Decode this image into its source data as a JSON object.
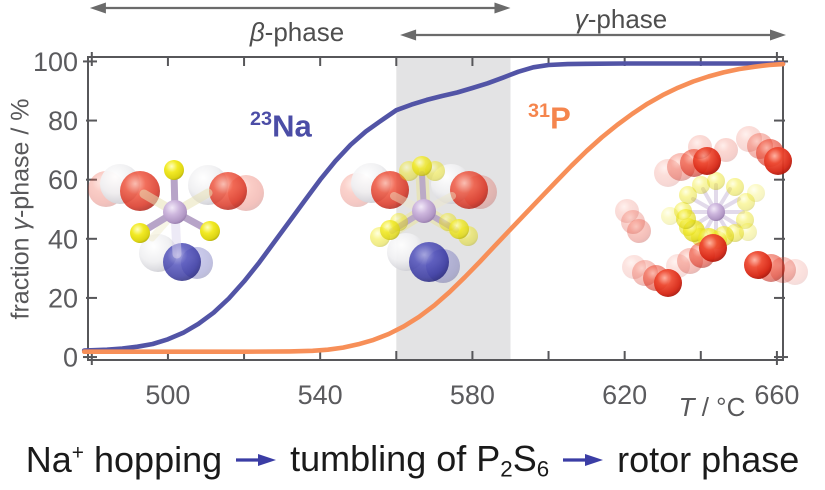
{
  "header": {
    "beta_symbol": "β",
    "beta_suffix": "-phase",
    "gamma_symbol": "γ",
    "gamma_suffix": "-phase"
  },
  "axes": {
    "y_pre": "fraction ",
    "y_symbol": "γ",
    "y_post": "-phase / %",
    "x_symbol": "T",
    "x_unit": " / °C"
  },
  "curve_labels": {
    "na": {
      "mass": "23",
      "element": "Na"
    },
    "p": {
      "mass": "31",
      "element": "P"
    }
  },
  "caption": {
    "na": "Na",
    "na_sup": "+",
    "hopping": " hopping",
    "tumbling": "tumbling of P",
    "p_sub": "2",
    "s": "S",
    "s_sub": "6",
    "rotor": "rotor phase"
  },
  "colors": {
    "curve_na": "#5254a6",
    "curve_p": "#f78f58",
    "axis": "#57575a",
    "tick_text": "#5b5b5e",
    "band": "#e3e3e4",
    "phase_arrow": "#6b6b6b",
    "caption_arrow": "#3b3da5",
    "label_na": "#4b4da6",
    "label_p": "#f5854d"
  },
  "chart_data": {
    "type": "line",
    "title": "",
    "xlabel": "T / °C",
    "ylabel": "fraction γ-phase / %",
    "xlim": [
      479,
      661.6
    ],
    "ylim": [
      -1,
      101.5
    ],
    "x_ticks_major": [
      500,
      540,
      580,
      620,
      660
    ],
    "x_ticks_minor": [
      480,
      520,
      560,
      600,
      640
    ],
    "y_ticks": [
      0,
      20,
      40,
      60,
      80,
      100
    ],
    "grid": false,
    "legend_position": "none",
    "shaded_region": {
      "x_start": 560,
      "x_end": 590
    },
    "annotations": {
      "beta_arrow_T": [
        479.5,
        590
      ],
      "gamma_arrow_T": [
        561,
        663
      ]
    },
    "series": [
      {
        "name": "23Na",
        "points": [
          [
            478,
            2.2
          ],
          [
            484,
            2.5
          ],
          [
            488,
            2.9
          ],
          [
            492,
            3.5
          ],
          [
            496,
            4.4
          ],
          [
            500,
            6
          ],
          [
            504,
            8.2
          ],
          [
            508,
            11.2
          ],
          [
            512,
            15
          ],
          [
            516,
            19.8
          ],
          [
            520,
            25.6
          ],
          [
            524,
            32
          ],
          [
            528,
            39
          ],
          [
            532,
            46
          ],
          [
            536,
            53
          ],
          [
            540,
            60
          ],
          [
            544,
            66.3
          ],
          [
            548,
            71.8
          ],
          [
            552,
            76.3
          ],
          [
            556,
            80
          ],
          [
            560,
            83.5
          ],
          [
            564,
            85.4
          ],
          [
            568,
            87
          ],
          [
            572,
            88.3
          ],
          [
            576,
            89.5
          ],
          [
            580,
            91
          ],
          [
            584,
            92.6
          ],
          [
            588,
            94.5
          ],
          [
            592,
            96.5
          ],
          [
            596,
            98
          ],
          [
            600,
            98.8
          ],
          [
            605,
            99.1
          ],
          [
            610,
            99.2
          ],
          [
            620,
            99.3
          ],
          [
            635,
            99.3
          ],
          [
            650,
            99.3
          ],
          [
            661.6,
            99.3
          ]
        ]
      },
      {
        "name": "31P",
        "points": [
          [
            478,
            1.8
          ],
          [
            500,
            1.8
          ],
          [
            520,
            1.8
          ],
          [
            532,
            1.9
          ],
          [
            538,
            2.1
          ],
          [
            542,
            2.5
          ],
          [
            546,
            3.2
          ],
          [
            550,
            4.3
          ],
          [
            554,
            5.8
          ],
          [
            558,
            7.8
          ],
          [
            562,
            10.4
          ],
          [
            566,
            13.6
          ],
          [
            570,
            17.5
          ],
          [
            574,
            22
          ],
          [
            578,
            27
          ],
          [
            582,
            32.3
          ],
          [
            586,
            37.8
          ],
          [
            590,
            43.2
          ],
          [
            594,
            48.6
          ],
          [
            598,
            54
          ],
          [
            602,
            59.4
          ],
          [
            606,
            64.7
          ],
          [
            610,
            69.7
          ],
          [
            614,
            74.3
          ],
          [
            618,
            78.5
          ],
          [
            622,
            82.3
          ],
          [
            626,
            85.7
          ],
          [
            630,
            88.6
          ],
          [
            634,
            91.1
          ],
          [
            638,
            93.2
          ],
          [
            642,
            94.9
          ],
          [
            646,
            96.3
          ],
          [
            650,
            97.4
          ],
          [
            654,
            98.2
          ],
          [
            658,
            98.8
          ],
          [
            661.6,
            99.1
          ]
        ]
      }
    ]
  },
  "molecules": [
    {
      "name": "p2s6-na-static",
      "elements": [
        [
          "atom",
          106,
          189,
          18,
          "red",
          0.28
        ],
        [
          "atom",
          120,
          184,
          20,
          "white",
          0.95
        ],
        [
          "atom",
          140,
          191,
          20,
          "red",
          0.8
        ],
        [
          "atom",
          246,
          193,
          18,
          "red",
          0.28
        ],
        [
          "atom",
          208,
          185,
          20,
          "white",
          0.95
        ],
        [
          "atom",
          228,
          191,
          19,
          "red",
          0.78
        ],
        [
          "atom",
          197,
          263,
          16,
          "blue",
          0.3
        ],
        [
          "atom",
          158,
          253,
          19,
          "white",
          0.92
        ],
        [
          "atom",
          182,
          262,
          19,
          "blue",
          0.8
        ],
        [
          "bond",
          175,
          212,
          144,
          194,
          9,
          "#e8e2b8",
          0.55
        ],
        [
          "bond",
          175,
          212,
          208,
          193,
          9,
          "#e8e2b8",
          0.55
        ],
        [
          "bond",
          175,
          212,
          177,
          254,
          9,
          "#ddd6ee",
          0.5
        ],
        [
          "bond",
          175,
          212,
          152,
          238,
          7,
          "#efe9c9",
          0.45
        ],
        [
          "bond",
          175,
          212,
          174,
          173,
          7,
          "#b7a4c8",
          1
        ],
        [
          "bond",
          175,
          212,
          142,
          232,
          7,
          "#b7a4c8",
          1
        ],
        [
          "bond",
          175,
          212,
          208,
          230,
          7,
          "#b7a4c8",
          1
        ],
        [
          "atom",
          174,
          170,
          10,
          "yellow",
          1
        ],
        [
          "atom",
          140,
          233,
          10,
          "yellow",
          1
        ],
        [
          "atom",
          210,
          231,
          10,
          "yellow",
          1
        ],
        [
          "atom",
          175,
          212,
          12,
          "purple",
          1
        ]
      ]
    },
    {
      "name": "p2s6-tumbling",
      "elements": [
        [
          "atom",
          357,
          190,
          17,
          "red",
          0.25
        ],
        [
          "atom",
          371,
          183,
          20,
          "white",
          0.95
        ],
        [
          "atom",
          390,
          190,
          19,
          "red",
          0.8
        ],
        [
          "atom",
          480,
          192,
          17,
          "red",
          0.25
        ],
        [
          "atom",
          451,
          184,
          20,
          "white",
          0.95
        ],
        [
          "atom",
          469,
          190,
          19,
          "red",
          0.78
        ],
        [
          "atom",
          443,
          266,
          17,
          "blue",
          0.3
        ],
        [
          "atom",
          406,
          252,
          19,
          "white",
          0.92
        ],
        [
          "atom",
          429,
          262,
          20,
          "blue",
          0.82
        ],
        [
          "bond",
          424,
          211,
          422,
          174,
          13,
          "#e9e396",
          0.5
        ],
        [
          "bond",
          424,
          211,
          392,
          231,
          13,
          "#e9e396",
          0.5
        ],
        [
          "bond",
          424,
          211,
          456,
          230,
          13,
          "#e9e396",
          0.5
        ],
        [
          "bond",
          424,
          211,
          394,
          196,
          8,
          "#efe9c9",
          0.45
        ],
        [
          "bond",
          424,
          211,
          452,
          196,
          8,
          "#efe9c9",
          0.45
        ],
        [
          "bond",
          424,
          211,
          422,
          174,
          6,
          "#b7a4c8",
          0.9
        ],
        [
          "bond",
          424,
          211,
          392,
          231,
          6,
          "#b7a4c8",
          0.9
        ],
        [
          "bond",
          424,
          211,
          456,
          230,
          6,
          "#b7a4c8",
          0.9
        ],
        [
          "atom",
          409,
          171,
          10,
          "yellow",
          0.5
        ],
        [
          "atom",
          435,
          171,
          10,
          "yellow",
          0.5
        ],
        [
          "atom",
          422,
          166,
          10,
          "yellow",
          0.8
        ],
        [
          "atom",
          380,
          237,
          10,
          "yellow",
          0.5
        ],
        [
          "atom",
          399,
          222,
          9,
          "yellow",
          0.5
        ],
        [
          "atom",
          390,
          230,
          10,
          "yellow",
          0.8
        ],
        [
          "atom",
          468,
          236,
          10,
          "yellow",
          0.5
        ],
        [
          "atom",
          448,
          222,
          9,
          "yellow",
          0.5
        ],
        [
          "atom",
          459,
          229,
          10,
          "yellow",
          0.8
        ],
        [
          "atom",
          424,
          211,
          12,
          "purple",
          1
        ]
      ]
    },
    {
      "name": "p2s6-rotor",
      "elements": [
        [
          "bond",
          716,
          212,
          743,
          212,
          4,
          "#cbbdd9",
          0.55
        ],
        [
          "bond",
          716,
          212,
          739,
          199,
          4,
          "#cbbdd9",
          0.55
        ],
        [
          "bond",
          716,
          212,
          730,
          189,
          4,
          "#cbbdd9",
          0.55
        ],
        [
          "bond",
          716,
          212,
          716,
          185,
          4,
          "#cbbdd9",
          0.55
        ],
        [
          "bond",
          716,
          212,
          703,
          189,
          4,
          "#cbbdd9",
          0.55
        ],
        [
          "bond",
          716,
          212,
          693,
          199,
          4,
          "#cbbdd9",
          0.55
        ],
        [
          "bond",
          716,
          212,
          689,
          212,
          4,
          "#cbbdd9",
          0.55
        ],
        [
          "bond",
          716,
          212,
          693,
          226,
          4,
          "#cbbdd9",
          0.55
        ],
        [
          "bond",
          716,
          212,
          703,
          235,
          4,
          "#cbbdd9",
          0.55
        ],
        [
          "bond",
          716,
          212,
          716,
          239,
          4,
          "#cbbdd9",
          0.55
        ],
        [
          "bond",
          716,
          212,
          730,
          235,
          4,
          "#cbbdd9",
          0.55
        ],
        [
          "bond",
          716,
          212,
          739,
          226,
          4,
          "#cbbdd9",
          0.55
        ],
        [
          "atom",
          716,
          181,
          9,
          "yellow",
          0.45
        ],
        [
          "atom",
          735,
          187,
          9,
          "yellow",
          0.45
        ],
        [
          "atom",
          746,
          202,
          9,
          "yellow",
          0.4
        ],
        [
          "atom",
          745,
          220,
          9,
          "yellow",
          0.45
        ],
        [
          "atom",
          735,
          233,
          9,
          "yellow",
          0.5
        ],
        [
          "atom",
          718,
          240,
          9,
          "yellow",
          0.55
        ],
        [
          "atom",
          700,
          237,
          9,
          "yellow",
          0.6
        ],
        [
          "atom",
          688,
          227,
          9,
          "yellow",
          0.6
        ],
        [
          "atom",
          683,
          211,
          9,
          "yellow",
          0.5
        ],
        [
          "atom",
          688,
          195,
          9,
          "yellow",
          0.45
        ],
        [
          "atom",
          701,
          185,
          9,
          "yellow",
          0.4
        ],
        [
          "atom",
          694,
          231,
          11,
          "yellow",
          0.75
        ],
        [
          "atom",
          709,
          239,
          11,
          "yellow",
          0.75
        ],
        [
          "atom",
          724,
          236,
          10,
          "yellow",
          0.6
        ],
        [
          "atom",
          686,
          219,
          10,
          "yellow",
          0.65
        ],
        [
          "atom",
          670,
          216,
          9,
          "yellow",
          0.25
        ],
        [
          "atom",
          756,
          193,
          9,
          "yellow",
          0.25
        ],
        [
          "atom",
          748,
          232,
          9,
          "yellow",
          0.3
        ],
        [
          "atom",
          716,
          212,
          9,
          "purple",
          1
        ],
        [
          "atom",
          627,
          211,
          12,
          "red",
          0.18
        ],
        [
          "atom",
          633,
          222,
          12,
          "red",
          0.25
        ],
        [
          "atom",
          639,
          231,
          12,
          "red",
          0.3
        ],
        [
          "atom",
          668,
          173,
          14,
          "red",
          0.18
        ],
        [
          "atom",
          681,
          167,
          14,
          "red",
          0.35
        ],
        [
          "atom",
          694,
          163,
          14,
          "red",
          0.6
        ],
        [
          "atom",
          707,
          161,
          14,
          "red",
          0.95
        ],
        [
          "atom",
          700,
          147,
          12,
          "red",
          0.2
        ],
        [
          "atom",
          726,
          150,
          12,
          "red",
          0.22
        ],
        [
          "atom",
          749,
          139,
          13,
          "red",
          0.18
        ],
        [
          "atom",
          760,
          146,
          13,
          "red",
          0.35
        ],
        [
          "atom",
          770,
          153,
          14,
          "red",
          0.6
        ],
        [
          "atom",
          778,
          161,
          14,
          "red",
          0.95
        ],
        [
          "atom",
          795,
          272,
          13,
          "red",
          0.15
        ],
        [
          "atom",
          783,
          270,
          13,
          "red",
          0.3
        ],
        [
          "atom",
          771,
          268,
          14,
          "red",
          0.55
        ],
        [
          "atom",
          758,
          265,
          14,
          "red",
          0.95
        ],
        [
          "atom",
          678,
          266,
          12,
          "red",
          0.15
        ],
        [
          "atom",
          690,
          261,
          13,
          "red",
          0.3
        ],
        [
          "atom",
          702,
          255,
          13,
          "red",
          0.55
        ],
        [
          "atom",
          713,
          248,
          14,
          "red",
          0.95
        ],
        [
          "atom",
          634,
          267,
          12,
          "red",
          0.15
        ],
        [
          "atom",
          645,
          273,
          13,
          "red",
          0.3
        ],
        [
          "atom",
          656,
          278,
          13,
          "red",
          0.55
        ],
        [
          "atom",
          668,
          283,
          14,
          "red",
          0.95
        ]
      ]
    }
  ]
}
